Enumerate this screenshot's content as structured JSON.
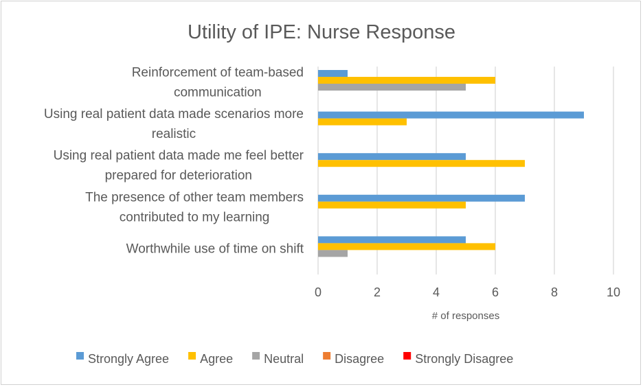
{
  "chart_data": {
    "type": "bar",
    "orientation": "horizontal",
    "title": "Utility of IPE: Nurse Response",
    "xlabel": "# of responses",
    "ylabel": "",
    "xlim": [
      0,
      10
    ],
    "x_ticks": [
      0,
      2,
      4,
      6,
      8,
      10
    ],
    "grid": true,
    "legend_position": "bottom",
    "categories": [
      [
        "Reinforcement of team-based",
        "communication"
      ],
      [
        "Using real patient data made scenarios more",
        "realistic"
      ],
      [
        "Using real patient data made me feel better",
        "prepared for deterioration"
      ],
      [
        "The presence of other team members",
        "contributed to my learning"
      ],
      [
        "Worthwhile use of time on shift"
      ]
    ],
    "series": [
      {
        "name": "Strongly Agree",
        "color": "#5B9BD5",
        "values": [
          1,
          9,
          5,
          7,
          5
        ]
      },
      {
        "name": "Agree",
        "color": "#FFC000",
        "values": [
          6,
          3,
          7,
          5,
          6
        ]
      },
      {
        "name": "Neutral",
        "color": "#A5A5A5",
        "values": [
          5,
          0,
          0,
          0,
          1
        ]
      },
      {
        "name": "Disagree",
        "color": "#ED7D31",
        "values": [
          0,
          0,
          0,
          0,
          0
        ]
      },
      {
        "name": "Strongly Disagree",
        "color": "#FF0000",
        "values": [
          0,
          0,
          0,
          0,
          0
        ]
      }
    ]
  }
}
